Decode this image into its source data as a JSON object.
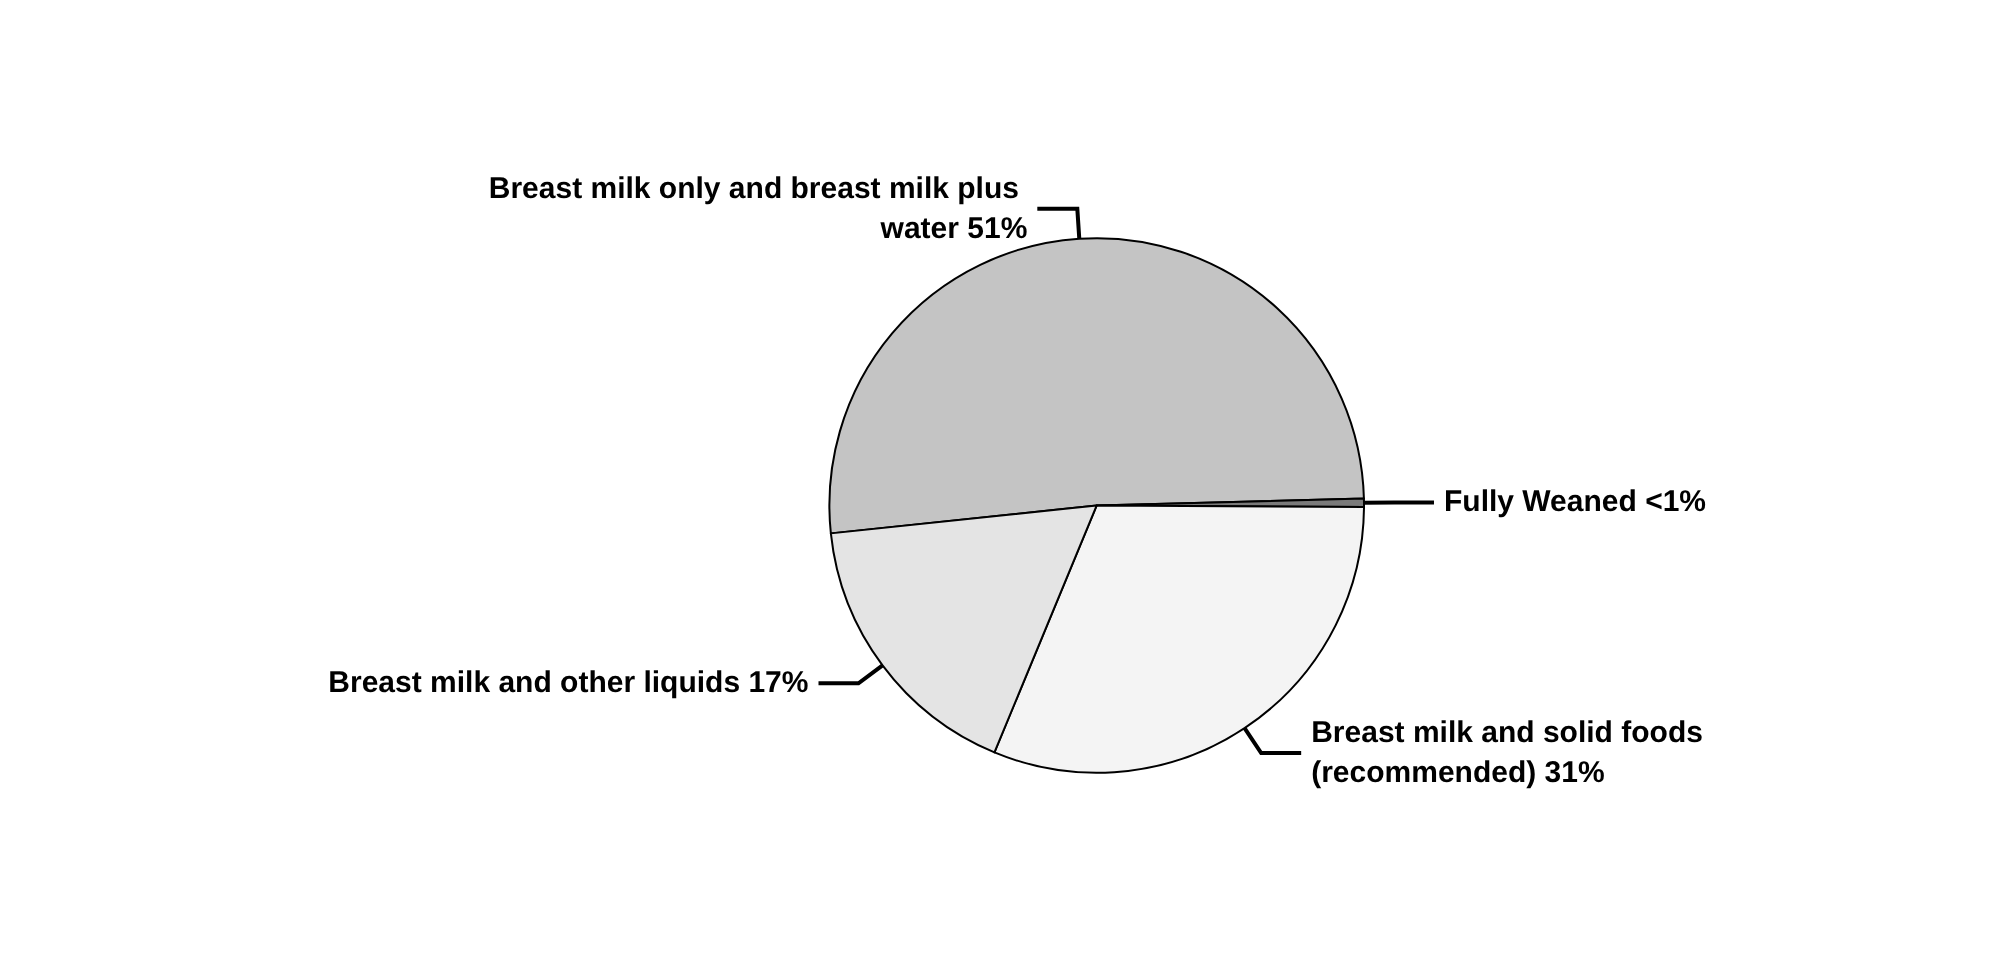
{
  "chart_data": {
    "type": "pie",
    "categories": [
      "Breast milk only and breast milk plus water",
      "Fully Weaned",
      "Breast milk and solid foods (recommended)",
      "Breast milk and other liquids"
    ],
    "values": [
      51,
      0.5,
      31,
      17
    ],
    "value_labels": [
      "51%",
      "<1%",
      "31%",
      "17%"
    ],
    "colors": [
      "#c4c4c4",
      "#7a7a7a",
      "#f4f4f4",
      "#e4e4e4"
    ],
    "legend": false
  }
}
